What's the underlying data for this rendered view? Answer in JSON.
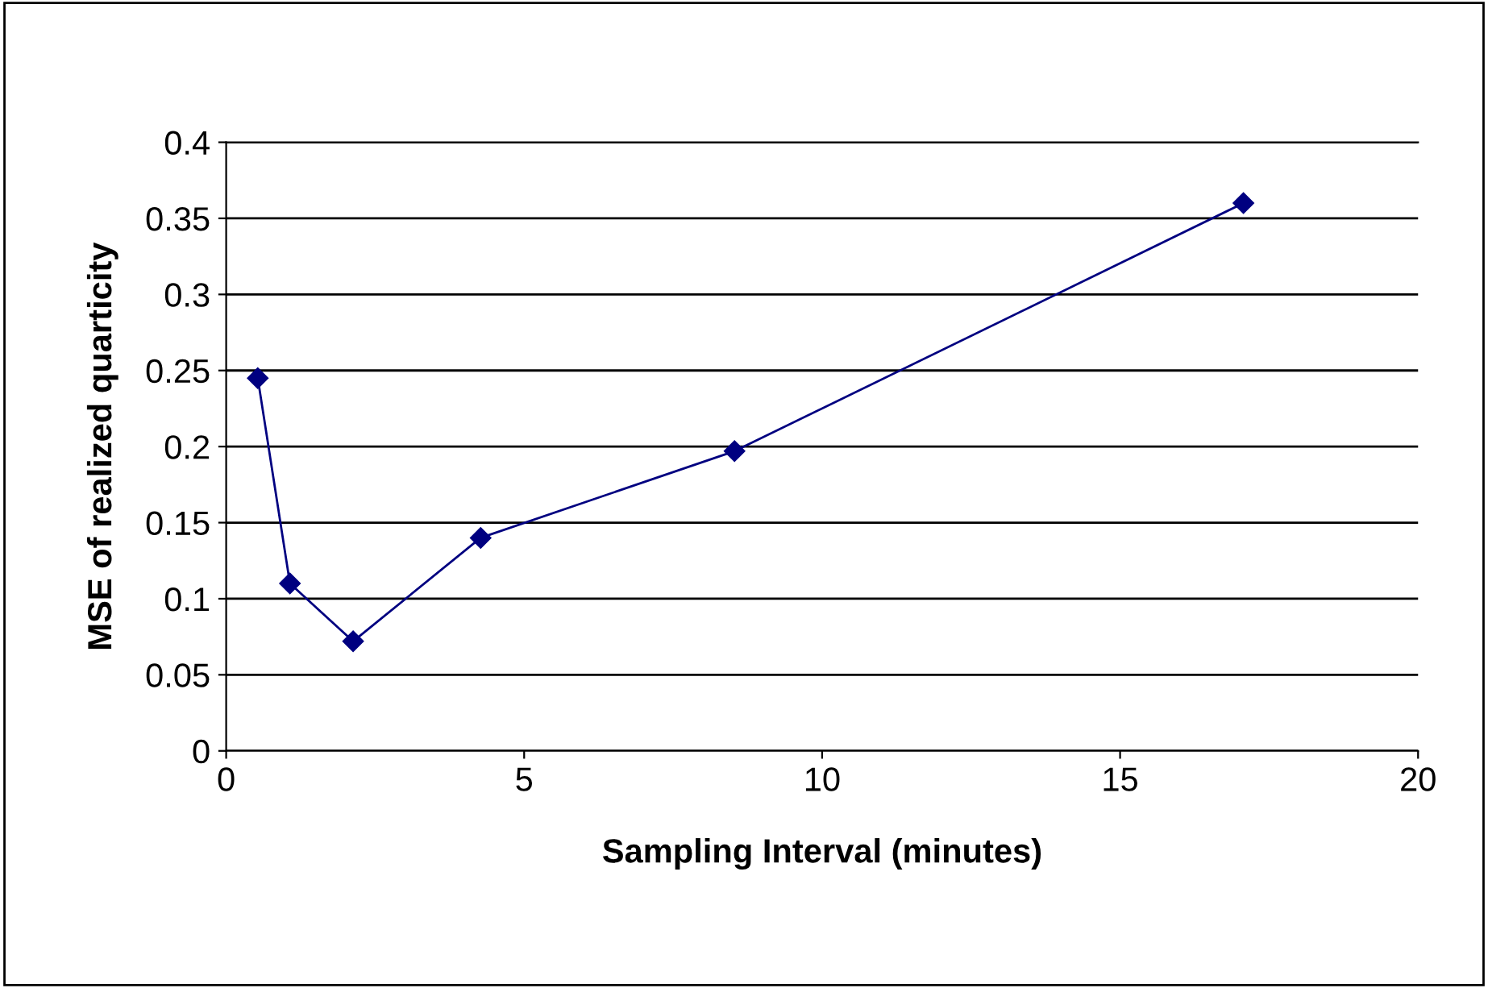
{
  "chart_data": {
    "type": "line",
    "xlabel": "Sampling Interval (minutes)",
    "ylabel": "MSE of realized quarticity",
    "x": [
      0.53,
      1.07,
      2.13,
      4.27,
      8.53,
      17.07
    ],
    "series": [
      {
        "color": "#000080",
        "values": [
          0.245,
          0.11,
          0.072,
          0.14,
          0.197,
          0.36
        ]
      }
    ],
    "xlim": [
      0,
      20
    ],
    "xticks": [
      0,
      5,
      10,
      15,
      20
    ],
    "ylim": [
      0,
      0.4
    ],
    "yticks": [
      0,
      0.05,
      0.1,
      0.15,
      0.2,
      0.25,
      0.3,
      0.35,
      0.4
    ],
    "grid": "y",
    "marker": "diamond",
    "line_style": "solid",
    "legend": false
  }
}
